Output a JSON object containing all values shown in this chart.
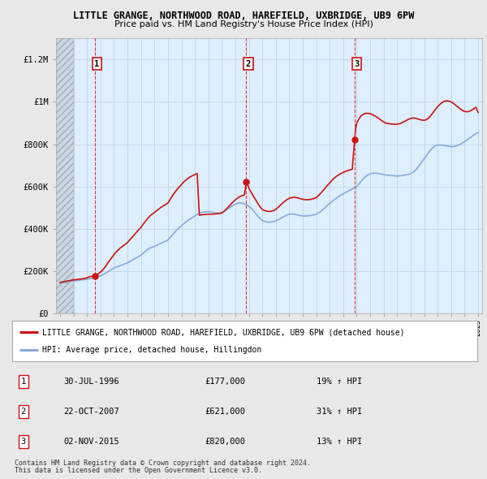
{
  "title_line1": "LITTLE GRANGE, NORTHWOOD ROAD, HAREFIELD, UXBRIDGE, UB9 6PW",
  "title_line2": "Price paid vs. HM Land Registry's House Price Index (HPI)",
  "ylabel_ticks": [
    "£0",
    "£200K",
    "£400K",
    "£600K",
    "£800K",
    "£1M",
    "£1.2M"
  ],
  "ytick_values": [
    0,
    200000,
    400000,
    600000,
    800000,
    1000000,
    1200000
  ],
  "ylim": [
    0,
    1300000
  ],
  "xlim_start": 1993.7,
  "xlim_end": 2025.3,
  "hatch_end": 1995.0,
  "sale_dates": [
    1996.58,
    2007.81,
    2015.84
  ],
  "sale_prices": [
    177000,
    621000,
    820000
  ],
  "sale_labels": [
    "1",
    "2",
    "3"
  ],
  "background_color": "#e8e8e8",
  "plot_bg_color": "#ddeeff",
  "hpi_color": "#88aadd",
  "price_color": "#cc1111",
  "vline_color": "#dd3333",
  "grid_color": "#bbccdd",
  "legend_label_price": "LITTLE GRANGE, NORTHWOOD ROAD, HAREFIELD, UXBRIDGE, UB9 6PW (detached house)",
  "legend_label_hpi": "HPI: Average price, detached house, Hillingdon",
  "table_rows": [
    [
      "1",
      "30-JUL-1996",
      "£177,000",
      "19% ↑ HPI"
    ],
    [
      "2",
      "22-OCT-2007",
      "£621,000",
      "31% ↑ HPI"
    ],
    [
      "3",
      "02-NOV-2015",
      "£820,000",
      "13% ↑ HPI"
    ]
  ],
  "footnote1": "Contains HM Land Registry data © Crown copyright and database right 2024.",
  "footnote2": "This data is licensed under the Open Government Licence v3.0.",
  "hpi_data_x": [
    1994.0,
    1994.08,
    1994.17,
    1994.25,
    1994.33,
    1994.42,
    1994.5,
    1994.58,
    1994.67,
    1994.75,
    1994.83,
    1994.92,
    1995.0,
    1995.08,
    1995.17,
    1995.25,
    1995.33,
    1995.42,
    1995.5,
    1995.58,
    1995.67,
    1995.75,
    1995.83,
    1995.92,
    1996.0,
    1996.08,
    1996.17,
    1996.25,
    1996.33,
    1996.42,
    1996.5,
    1996.58,
    1996.67,
    1996.75,
    1996.83,
    1996.92,
    1997.0,
    1997.08,
    1997.17,
    1997.25,
    1997.33,
    1997.42,
    1997.5,
    1997.58,
    1997.67,
    1997.75,
    1997.83,
    1997.92,
    1998.0,
    1998.17,
    1998.33,
    1998.5,
    1998.67,
    1998.83,
    1999.0,
    1999.17,
    1999.33,
    1999.5,
    1999.67,
    1999.83,
    2000.0,
    2000.17,
    2000.33,
    2000.5,
    2000.67,
    2000.83,
    2001.0,
    2001.17,
    2001.33,
    2001.5,
    2001.67,
    2001.83,
    2002.0,
    2002.17,
    2002.33,
    2002.5,
    2002.67,
    2002.83,
    2003.0,
    2003.17,
    2003.33,
    2003.5,
    2003.67,
    2003.83,
    2004.0,
    2004.17,
    2004.33,
    2004.5,
    2004.67,
    2004.83,
    2005.0,
    2005.17,
    2005.33,
    2005.5,
    2005.67,
    2005.83,
    2006.0,
    2006.17,
    2006.33,
    2006.5,
    2006.67,
    2006.83,
    2007.0,
    2007.17,
    2007.33,
    2007.5,
    2007.67,
    2007.83,
    2008.0,
    2008.17,
    2008.33,
    2008.5,
    2008.67,
    2008.83,
    2009.0,
    2009.17,
    2009.33,
    2009.5,
    2009.67,
    2009.83,
    2010.0,
    2010.17,
    2010.33,
    2010.5,
    2010.67,
    2010.83,
    2011.0,
    2011.17,
    2011.33,
    2011.5,
    2011.67,
    2011.83,
    2012.0,
    2012.17,
    2012.33,
    2012.5,
    2012.67,
    2012.83,
    2013.0,
    2013.17,
    2013.33,
    2013.5,
    2013.67,
    2013.83,
    2014.0,
    2014.17,
    2014.33,
    2014.5,
    2014.67,
    2014.83,
    2015.0,
    2015.17,
    2015.33,
    2015.5,
    2015.67,
    2015.83,
    2016.0,
    2016.17,
    2016.33,
    2016.5,
    2016.67,
    2016.83,
    2017.0,
    2017.17,
    2017.33,
    2017.5,
    2017.67,
    2017.83,
    2018.0,
    2018.17,
    2018.33,
    2018.5,
    2018.67,
    2018.83,
    2019.0,
    2019.17,
    2019.33,
    2019.5,
    2019.67,
    2019.83,
    2020.0,
    2020.17,
    2020.33,
    2020.5,
    2020.67,
    2020.83,
    2021.0,
    2021.17,
    2021.33,
    2021.5,
    2021.67,
    2021.83,
    2022.0,
    2022.17,
    2022.33,
    2022.5,
    2022.67,
    2022.83,
    2023.0,
    2023.17,
    2023.33,
    2023.5,
    2023.67,
    2023.83,
    2024.0,
    2024.17,
    2024.33,
    2024.5,
    2024.67,
    2024.83,
    2025.0
  ],
  "hpi_data_y": [
    143000,
    144000,
    145000,
    146000,
    147000,
    148000,
    149000,
    150000,
    151000,
    152000,
    153000,
    154000,
    155000,
    155500,
    156000,
    157000,
    157500,
    158000,
    158500,
    159000,
    159500,
    160000,
    161000,
    162000,
    163000,
    164000,
    165000,
    166000,
    167000,
    168000,
    169000,
    170000,
    172000,
    174000,
    176000,
    177000,
    179000,
    181000,
    184000,
    187000,
    190000,
    193000,
    196000,
    199000,
    202000,
    206000,
    210000,
    213000,
    216000,
    220000,
    224000,
    228000,
    232000,
    236000,
    240000,
    246000,
    252000,
    258000,
    264000,
    270000,
    277000,
    286000,
    295000,
    304000,
    310000,
    314000,
    318000,
    323000,
    328000,
    333000,
    338000,
    343000,
    348000,
    360000,
    372000,
    385000,
    396000,
    406000,
    416000,
    425000,
    433000,
    441000,
    448000,
    455000,
    462000,
    469000,
    474000,
    478000,
    480000,
    481000,
    482000,
    480000,
    479000,
    477000,
    476000,
    475000,
    478000,
    483000,
    490000,
    497000,
    505000,
    512000,
    518000,
    522000,
    524000,
    522000,
    518000,
    514000,
    508000,
    498000,
    487000,
    474000,
    461000,
    450000,
    440000,
    436000,
    433000,
    432000,
    433000,
    435000,
    438000,
    443000,
    449000,
    455000,
    461000,
    466000,
    470000,
    471000,
    470000,
    468000,
    465000,
    463000,
    461000,
    461000,
    462000,
    463000,
    465000,
    467000,
    470000,
    476000,
    483000,
    492000,
    502000,
    512000,
    521000,
    530000,
    538000,
    546000,
    553000,
    560000,
    566000,
    572000,
    578000,
    584000,
    590000,
    595000,
    600000,
    613000,
    626000,
    638000,
    648000,
    655000,
    660000,
    663000,
    664000,
    663000,
    661000,
    659000,
    657000,
    655000,
    654000,
    653000,
    652000,
    651000,
    650000,
    651000,
    652000,
    654000,
    656000,
    658000,
    661000,
    667000,
    676000,
    688000,
    702000,
    717000,
    732000,
    747000,
    762000,
    775000,
    785000,
    792000,
    796000,
    797000,
    796000,
    794000,
    792000,
    790000,
    789000,
    789000,
    791000,
    795000,
    800000,
    806000,
    812000,
    820000,
    828000,
    836000,
    843000,
    850000,
    855000
  ],
  "price_data_x": [
    1994.0,
    1994.08,
    1994.17,
    1994.25,
    1994.33,
    1994.42,
    1994.5,
    1994.58,
    1994.67,
    1994.75,
    1994.83,
    1994.92,
    1995.0,
    1995.08,
    1995.17,
    1995.25,
    1995.33,
    1995.42,
    1995.5,
    1995.58,
    1995.67,
    1995.75,
    1995.83,
    1995.92,
    1996.0,
    1996.08,
    1996.17,
    1996.25,
    1996.33,
    1996.42,
    1996.5,
    1996.58,
    1996.67,
    1996.75,
    1996.83,
    1996.92,
    1997.0,
    1997.08,
    1997.17,
    1997.25,
    1997.33,
    1997.42,
    1997.5,
    1997.58,
    1997.67,
    1997.75,
    1997.83,
    1997.92,
    1998.0,
    1998.17,
    1998.33,
    1998.5,
    1998.67,
    1998.83,
    1999.0,
    1999.17,
    1999.33,
    1999.5,
    1999.67,
    1999.83,
    2000.0,
    2000.17,
    2000.33,
    2000.5,
    2000.67,
    2000.83,
    2001.0,
    2001.17,
    2001.33,
    2001.5,
    2001.67,
    2001.83,
    2002.0,
    2002.17,
    2002.33,
    2002.5,
    2002.67,
    2002.83,
    2003.0,
    2003.17,
    2003.33,
    2003.5,
    2003.67,
    2003.83,
    2004.0,
    2004.17,
    2004.33,
    2004.5,
    2004.67,
    2004.83,
    2005.0,
    2005.17,
    2005.33,
    2005.5,
    2005.67,
    2005.83,
    2006.0,
    2006.17,
    2006.33,
    2006.5,
    2006.67,
    2006.83,
    2007.0,
    2007.17,
    2007.33,
    2007.5,
    2007.67,
    2007.81,
    2007.83,
    2007.92,
    2008.0,
    2008.17,
    2008.33,
    2008.5,
    2008.67,
    2008.83,
    2009.0,
    2009.17,
    2009.33,
    2009.5,
    2009.67,
    2009.83,
    2010.0,
    2010.17,
    2010.33,
    2010.5,
    2010.67,
    2010.83,
    2011.0,
    2011.17,
    2011.33,
    2011.5,
    2011.67,
    2011.83,
    2012.0,
    2012.17,
    2012.33,
    2012.5,
    2012.67,
    2012.83,
    2013.0,
    2013.17,
    2013.33,
    2013.5,
    2013.67,
    2013.83,
    2014.0,
    2014.17,
    2014.33,
    2014.5,
    2014.67,
    2014.83,
    2015.0,
    2015.17,
    2015.33,
    2015.5,
    2015.67,
    2015.84,
    2015.92,
    2016.0,
    2016.17,
    2016.33,
    2016.5,
    2016.67,
    2016.83,
    2017.0,
    2017.17,
    2017.33,
    2017.5,
    2017.67,
    2017.83,
    2018.0,
    2018.17,
    2018.33,
    2018.5,
    2018.67,
    2018.83,
    2019.0,
    2019.17,
    2019.33,
    2019.5,
    2019.67,
    2019.83,
    2020.0,
    2020.17,
    2020.33,
    2020.5,
    2020.67,
    2020.83,
    2021.0,
    2021.17,
    2021.33,
    2021.5,
    2021.67,
    2021.83,
    2022.0,
    2022.17,
    2022.33,
    2022.5,
    2022.67,
    2022.83,
    2023.0,
    2023.17,
    2023.33,
    2023.5,
    2023.67,
    2023.83,
    2024.0,
    2024.17,
    2024.33,
    2024.5,
    2024.67,
    2024.83,
    2025.0
  ],
  "price_data_y": [
    148000,
    149000,
    150000,
    151000,
    152000,
    153000,
    154000,
    155000,
    156000,
    157000,
    158000,
    159000,
    160000,
    160500,
    161000,
    162000,
    162500,
    163000,
    163500,
    164000,
    165000,
    166000,
    167000,
    168000,
    170000,
    172000,
    174000,
    176000,
    177000,
    177000,
    177000,
    177000,
    180000,
    184000,
    188000,
    192000,
    196000,
    201000,
    207000,
    213000,
    220000,
    228000,
    236000,
    244000,
    251000,
    258000,
    265000,
    272000,
    280000,
    292000,
    302000,
    312000,
    320000,
    328000,
    336000,
    349000,
    360000,
    372000,
    385000,
    396000,
    408000,
    423000,
    436000,
    450000,
    462000,
    470000,
    478000,
    487000,
    495000,
    503000,
    510000,
    516000,
    522000,
    540000,
    556000,
    572000,
    586000,
    598000,
    610000,
    622000,
    631000,
    640000,
    647000,
    652000,
    657000,
    662000,
    465000,
    467000,
    468000,
    469000,
    470000,
    470000,
    470000,
    471000,
    472000,
    473000,
    476000,
    484000,
    494000,
    505000,
    517000,
    528000,
    538000,
    546000,
    553000,
    558000,
    560000,
    621000,
    620000,
    608000,
    592000,
    574000,
    556000,
    538000,
    520000,
    505000,
    492000,
    487000,
    484000,
    483000,
    484000,
    487000,
    493000,
    502000,
    512000,
    522000,
    531000,
    539000,
    545000,
    548000,
    550000,
    549000,
    546000,
    543000,
    540000,
    538000,
    538000,
    539000,
    541000,
    544000,
    548000,
    558000,
    569000,
    581000,
    594000,
    606000,
    618000,
    630000,
    640000,
    649000,
    656000,
    662000,
    667000,
    672000,
    676000,
    679000,
    682000,
    820000,
    875000,
    900000,
    920000,
    935000,
    942000,
    946000,
    946000,
    944000,
    940000,
    934000,
    928000,
    920000,
    912000,
    905000,
    900000,
    898000,
    896000,
    895000,
    894000,
    895000,
    897000,
    901000,
    906000,
    912000,
    918000,
    922000,
    924000,
    923000,
    920000,
    917000,
    914000,
    913000,
    916000,
    924000,
    936000,
    950000,
    964000,
    977000,
    988000,
    997000,
    1003000,
    1005000,
    1004000,
    1000000,
    993000,
    985000,
    976000,
    967000,
    960000,
    955000,
    953000,
    955000,
    960000,
    967000,
    975000,
    950000
  ]
}
